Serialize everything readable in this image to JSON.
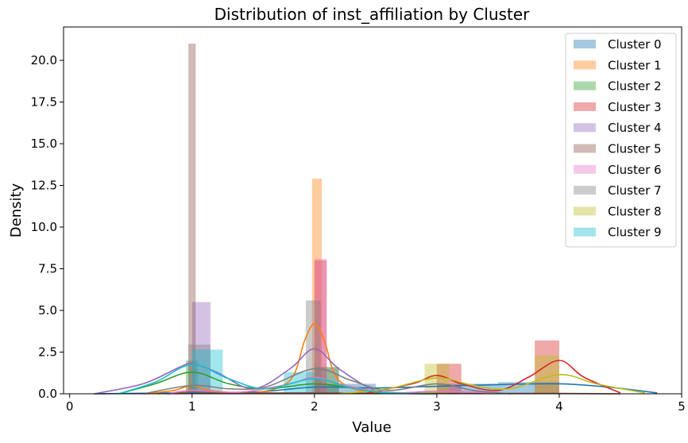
{
  "chart_data": {
    "type": "bar",
    "title": "Distribution of inst_affiliation by Cluster",
    "xlabel": "Value",
    "ylabel": "Density",
    "xlim": [
      -0.05,
      5.0
    ],
    "ylim": [
      0,
      22.0
    ],
    "x_ticks": [
      0,
      1,
      2,
      3,
      4,
      5
    ],
    "y_ticks": [
      0.0,
      2.5,
      5.0,
      7.5,
      10.0,
      12.5,
      15.0,
      17.5,
      20.0
    ],
    "y_tick_labels": [
      "0.0",
      "2.5",
      "5.0",
      "7.5",
      "10.0",
      "12.5",
      "15.0",
      "17.5",
      "20.0"
    ],
    "legend_position": "upper-right",
    "series": [
      {
        "name": "Cluster 0",
        "color": "#1f77b4",
        "bars": [
          [
            2.0,
            2.5,
            0.6
          ],
          [
            3.0,
            3.5,
            0.6
          ],
          [
            3.5,
            4.0,
            0.7
          ]
        ],
        "kde": [
          [
            0.2,
            0
          ],
          [
            0.8,
            0.05
          ],
          [
            1.5,
            0.1
          ],
          [
            2.0,
            0.4
          ],
          [
            2.5,
            0.35
          ],
          [
            3.0,
            0.45
          ],
          [
            3.5,
            0.55
          ],
          [
            4.0,
            0.6
          ],
          [
            4.4,
            0.4
          ],
          [
            4.8,
            0.05
          ]
        ]
      },
      {
        "name": "Cluster 1",
        "color": "#ff7f0e",
        "bars": [
          [
            1.98,
            2.06,
            12.9
          ],
          [
            0.95,
            1.05,
            0.5
          ]
        ],
        "kde": [
          [
            0.6,
            0
          ],
          [
            0.85,
            0.2
          ],
          [
            1.0,
            0.5
          ],
          [
            1.15,
            0.2
          ],
          [
            1.5,
            0.05
          ],
          [
            1.8,
            0.8
          ],
          [
            1.92,
            3.2
          ],
          [
            2.0,
            4.2
          ],
          [
            2.08,
            3.2
          ],
          [
            2.2,
            0.8
          ],
          [
            2.5,
            0.05
          ],
          [
            3.0,
            0.05
          ]
        ]
      },
      {
        "name": "Cluster 2",
        "color": "#2ca02c",
        "bars": [
          [
            0.95,
            1.05,
            2.0
          ],
          [
            2.0,
            2.2,
            1.6
          ]
        ],
        "kde": [
          [
            0.4,
            0
          ],
          [
            0.7,
            0.6
          ],
          [
            1.0,
            1.3
          ],
          [
            1.3,
            0.6
          ],
          [
            1.6,
            0.3
          ],
          [
            2.0,
            0.6
          ],
          [
            2.3,
            0.35
          ],
          [
            2.6,
            0.05
          ],
          [
            3.0,
            0
          ]
        ]
      },
      {
        "name": "Cluster 3",
        "color": "#d62728",
        "bars": [
          [
            3.0,
            3.2,
            1.8
          ],
          [
            3.8,
            4.0,
            3.2
          ],
          [
            2.0,
            2.1,
            8.0
          ]
        ],
        "kde": [
          [
            2.4,
            0
          ],
          [
            2.8,
            0.6
          ],
          [
            3.0,
            1.1
          ],
          [
            3.2,
            0.6
          ],
          [
            3.5,
            0.2
          ],
          [
            3.75,
            1.0
          ],
          [
            4.0,
            2.0
          ],
          [
            4.2,
            1.0
          ],
          [
            4.5,
            0.05
          ]
        ]
      },
      {
        "name": "Cluster 4",
        "color": "#9467bd",
        "bars": [
          [
            1.0,
            1.15,
            5.5
          ]
        ],
        "kde": [
          [
            0.2,
            0
          ],
          [
            0.6,
            0.6
          ],
          [
            0.9,
            1.6
          ],
          [
            1.0,
            1.8
          ],
          [
            1.2,
            1.3
          ],
          [
            1.5,
            0.3
          ],
          [
            1.8,
            1.5
          ],
          [
            2.0,
            2.7
          ],
          [
            2.2,
            1.5
          ],
          [
            2.5,
            0.2
          ],
          [
            2.8,
            0.05
          ]
        ]
      },
      {
        "name": "Cluster 5",
        "color": "#8c564b",
        "bars": [
          [
            0.97,
            1.03,
            21.0
          ]
        ],
        "kde": [
          [
            0.8,
            0
          ],
          [
            1.0,
            0.1
          ],
          [
            1.3,
            0.05
          ],
          [
            2.0,
            0.05
          ],
          [
            3.0,
            0.02
          ],
          [
            4.0,
            0.02
          ],
          [
            4.5,
            0
          ]
        ]
      },
      {
        "name": "Cluster 6",
        "color": "#e377c2",
        "bars": [
          [
            2.0,
            2.1,
            8.1
          ],
          [
            0.98,
            1.05,
            0.3
          ]
        ],
        "kde": [
          [
            0.8,
            0
          ],
          [
            1.0,
            0.2
          ],
          [
            1.4,
            0.1
          ],
          [
            1.8,
            0.6
          ],
          [
            2.0,
            1.0
          ],
          [
            2.2,
            0.6
          ],
          [
            2.6,
            0.05
          ],
          [
            3.0,
            0.15
          ],
          [
            3.5,
            0.05
          ]
        ]
      },
      {
        "name": "Cluster 7",
        "color": "#7f7f7f",
        "bars": [
          [
            1.93,
            2.05,
            5.6
          ],
          [
            0.97,
            1.15,
            2.95
          ],
          [
            2.0,
            2.2,
            1.6
          ]
        ],
        "kde": [
          [
            0.6,
            0
          ],
          [
            1.0,
            0.5
          ],
          [
            1.3,
            0.3
          ],
          [
            1.6,
            0.4
          ],
          [
            2.0,
            1.5
          ],
          [
            2.3,
            0.8
          ],
          [
            2.6,
            0.2
          ],
          [
            3.0,
            0.6
          ],
          [
            3.3,
            0.2
          ],
          [
            3.6,
            0
          ]
        ]
      },
      {
        "name": "Cluster 8",
        "color": "#bcbd22",
        "bars": [
          [
            2.9,
            3.1,
            1.8
          ],
          [
            3.8,
            4.0,
            2.3
          ]
        ],
        "kde": [
          [
            2.2,
            0
          ],
          [
            2.6,
            0.3
          ],
          [
            3.0,
            0.95
          ],
          [
            3.3,
            0.5
          ],
          [
            3.6,
            0.3
          ],
          [
            4.0,
            1.15
          ],
          [
            4.3,
            0.6
          ],
          [
            4.7,
            0.05
          ]
        ]
      },
      {
        "name": "Cluster 9",
        "color": "#17becf",
        "bars": [
          [
            1.0,
            1.25,
            2.65
          ],
          [
            1.75,
            2.0,
            1.3
          ]
        ],
        "kde": [
          [
            0.4,
            0
          ],
          [
            0.7,
            0.7
          ],
          [
            1.0,
            1.75
          ],
          [
            1.3,
            0.9
          ],
          [
            1.6,
            0.3
          ],
          [
            2.0,
            0.9
          ],
          [
            2.3,
            0.35
          ],
          [
            2.6,
            0.05
          ],
          [
            3.0,
            0
          ]
        ]
      }
    ]
  }
}
